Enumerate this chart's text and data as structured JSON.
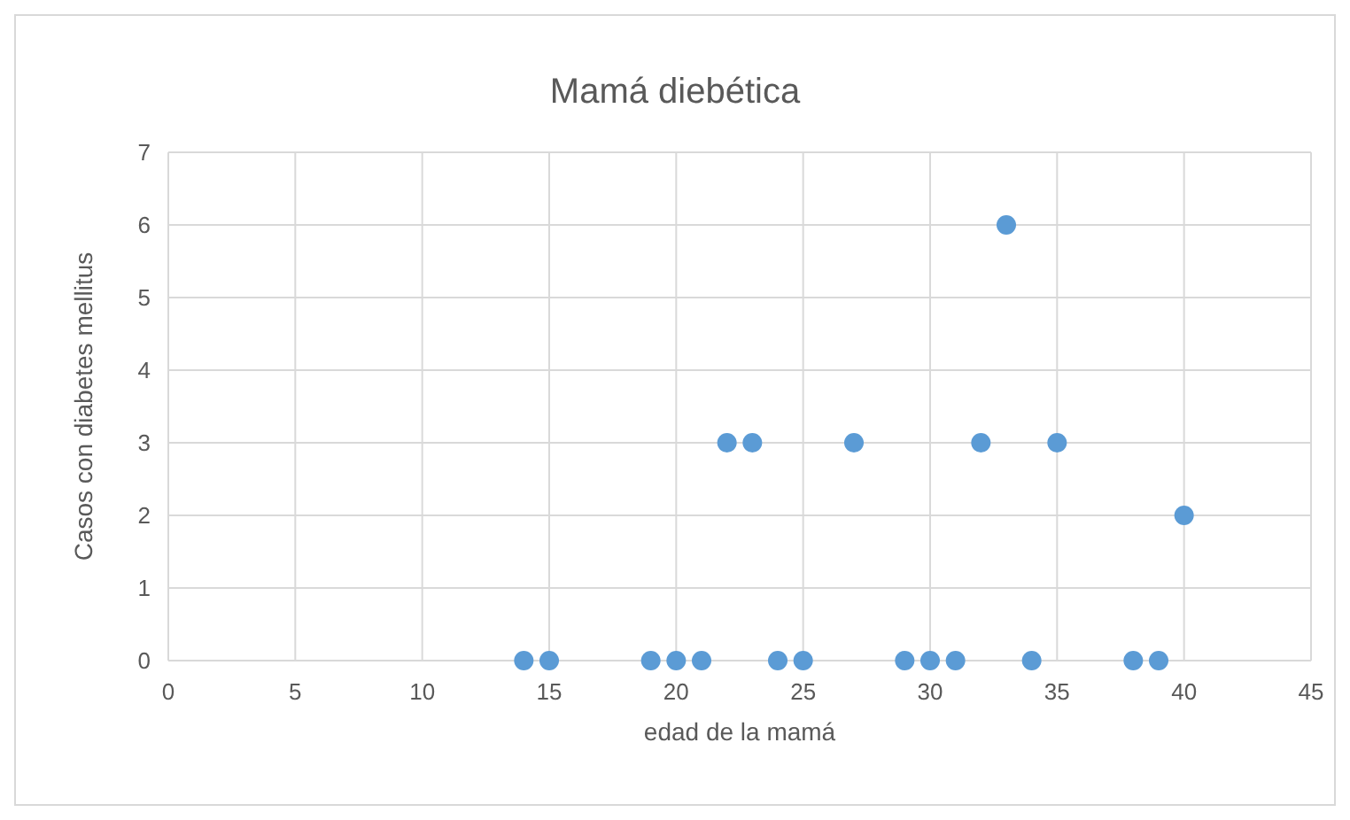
{
  "chart_data": {
    "type": "scatter",
    "title": "Mamá diebética",
    "xlabel": "edad de la mamá",
    "ylabel": "Casos con diabetes mellitus",
    "x": [
      14,
      15,
      19,
      20,
      21,
      24,
      25,
      29,
      30,
      31,
      34,
      38,
      39,
      22,
      23,
      27,
      32,
      35,
      33,
      40
    ],
    "series": [
      {
        "color": "#5b9bd5",
        "values": [
          0,
          0,
          0,
          0,
          0,
          0,
          0,
          0,
          0,
          0,
          0,
          0,
          0,
          3,
          3,
          3,
          3,
          3,
          6,
          2
        ]
      }
    ],
    "xlim": [
      0,
      45
    ],
    "xticks": [
      0,
      5,
      10,
      15,
      20,
      25,
      30,
      35,
      40,
      45
    ],
    "ylim": [
      0,
      7
    ],
    "yticks": [
      0,
      1,
      2,
      3,
      4,
      5,
      6,
      7
    ],
    "grid": true,
    "marker": "circle"
  }
}
